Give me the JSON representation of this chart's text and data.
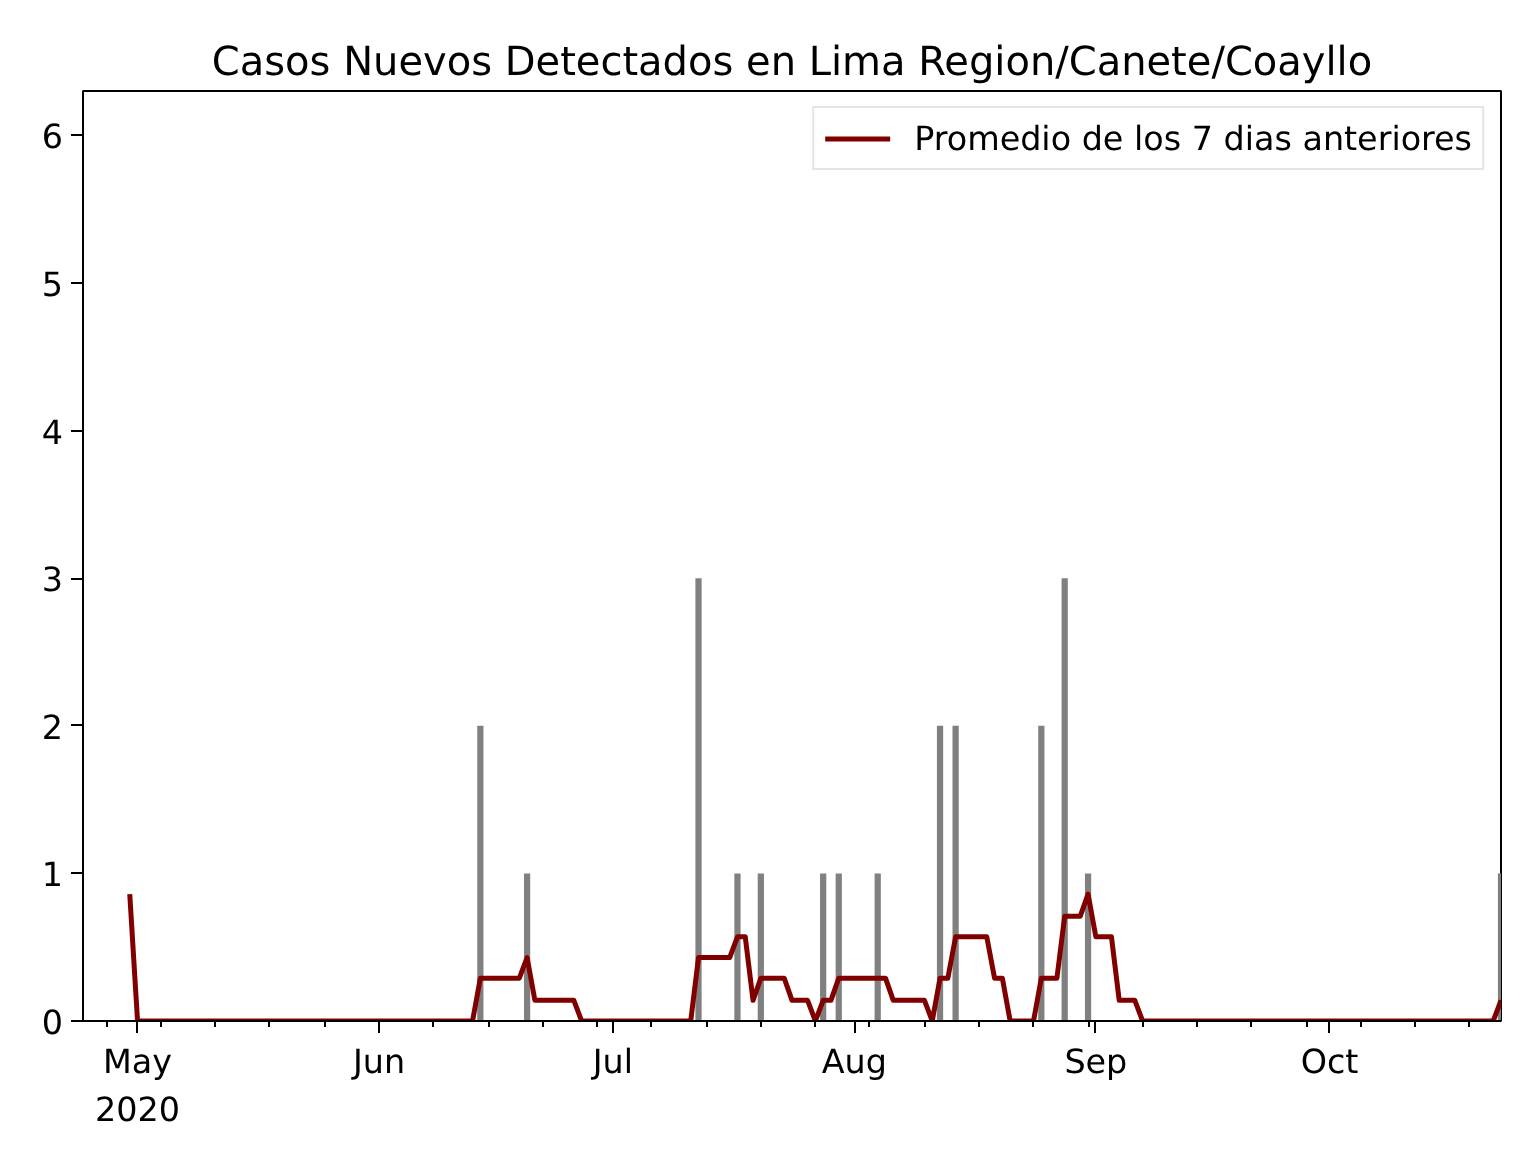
{
  "chart_data": {
    "type": "bar",
    "title": "Casos Nuevos Detectados en Lima Region/Canete/Coayllo",
    "xlim": [
      "2020-04-24",
      "2020-10-23"
    ],
    "xticks": [
      {
        "value": "2020-04-27",
        "label": null
      },
      {
        "value": "2020-05-01",
        "label": "May\n2020"
      },
      {
        "value": "2020-05-04",
        "label": null
      },
      {
        "value": "2020-05-11",
        "label": null
      },
      {
        "value": "2020-05-18",
        "label": null
      },
      {
        "value": "2020-05-25",
        "label": null
      },
      {
        "value": "2020-06-01",
        "label": "Jun"
      },
      {
        "value": "2020-06-08",
        "label": null
      },
      {
        "value": "2020-06-15",
        "label": null
      },
      {
        "value": "2020-06-22",
        "label": null
      },
      {
        "value": "2020-06-29",
        "label": null
      },
      {
        "value": "2020-07-01",
        "label": "Jul"
      },
      {
        "value": "2020-07-06",
        "label": null
      },
      {
        "value": "2020-07-13",
        "label": null
      },
      {
        "value": "2020-07-20",
        "label": null
      },
      {
        "value": "2020-07-27",
        "label": null
      },
      {
        "value": "2020-08-01",
        "label": "Aug"
      },
      {
        "value": "2020-08-03",
        "label": null
      },
      {
        "value": "2020-08-10",
        "label": null
      },
      {
        "value": "2020-08-17",
        "label": null
      },
      {
        "value": "2020-08-24",
        "label": null
      },
      {
        "value": "2020-08-31",
        "label": null
      },
      {
        "value": "2020-09-01",
        "label": "Sep"
      },
      {
        "value": "2020-09-07",
        "label": null
      },
      {
        "value": "2020-09-14",
        "label": null
      },
      {
        "value": "2020-09-21",
        "label": null
      },
      {
        "value": "2020-09-28",
        "label": null
      },
      {
        "value": "2020-10-01",
        "label": "Oct"
      },
      {
        "value": "2020-10-05",
        "label": null
      },
      {
        "value": "2020-10-12",
        "label": null
      },
      {
        "value": "2020-10-19",
        "label": null
      }
    ],
    "ylim": [
      0,
      6.3
    ],
    "yticks": [
      0,
      1,
      2,
      3,
      4,
      5,
      6
    ],
    "legend": "top right",
    "series": [
      {
        "color": "#808080",
        "x": [
          "2020-06-14",
          "2020-06-20",
          "2020-07-12",
          "2020-07-17",
          "2020-07-20",
          "2020-07-28",
          "2020-07-30",
          "2020-08-04",
          "2020-08-12",
          "2020-08-14",
          "2020-08-25",
          "2020-08-28",
          "2020-08-31",
          "2020-10-23"
        ],
        "values": [
          2,
          1,
          3,
          1,
          1,
          1,
          1,
          1,
          2,
          2,
          2,
          3,
          1,
          1
        ]
      },
      {
        "type": "line",
        "name": "Promedio de los 7 dias anteriores",
        "color": "#800000",
        "x": [
          "2020-04-30",
          "2020-05-01",
          "2020-06-13",
          "2020-06-14",
          "2020-06-19",
          "2020-06-20",
          "2020-06-21",
          "2020-06-26",
          "2020-06-27",
          "2020-07-11",
          "2020-07-12",
          "2020-07-16",
          "2020-07-17",
          "2020-07-18",
          "2020-07-19",
          "2020-07-20",
          "2020-07-23",
          "2020-07-24",
          "2020-07-26",
          "2020-07-27",
          "2020-07-28",
          "2020-07-29",
          "2020-07-30",
          "2020-08-05",
          "2020-08-06",
          "2020-08-10",
          "2020-08-11",
          "2020-08-12",
          "2020-08-13",
          "2020-08-14",
          "2020-08-18",
          "2020-08-19",
          "2020-08-20",
          "2020-08-21",
          "2020-08-24",
          "2020-08-25",
          "2020-08-27",
          "2020-08-28",
          "2020-08-30",
          "2020-08-31",
          "2020-09-01",
          "2020-09-03",
          "2020-09-04",
          "2020-09-06",
          "2020-09-07",
          "2020-10-22",
          "2020-10-23"
        ],
        "values": [
          0.86,
          0,
          0,
          0.29,
          0.29,
          0.43,
          0.14,
          0.14,
          0,
          0,
          0.43,
          0.43,
          0.57,
          0.57,
          0.14,
          0.29,
          0.29,
          0.14,
          0.14,
          0,
          0.14,
          0.14,
          0.29,
          0.29,
          0.14,
          0.14,
          0,
          0.29,
          0.29,
          0.57,
          0.57,
          0.29,
          0.29,
          0,
          0,
          0.29,
          0.29,
          0.71,
          0.71,
          0.86,
          0.57,
          0.57,
          0.14,
          0.14,
          0,
          0,
          0.14
        ]
      }
    ]
  }
}
